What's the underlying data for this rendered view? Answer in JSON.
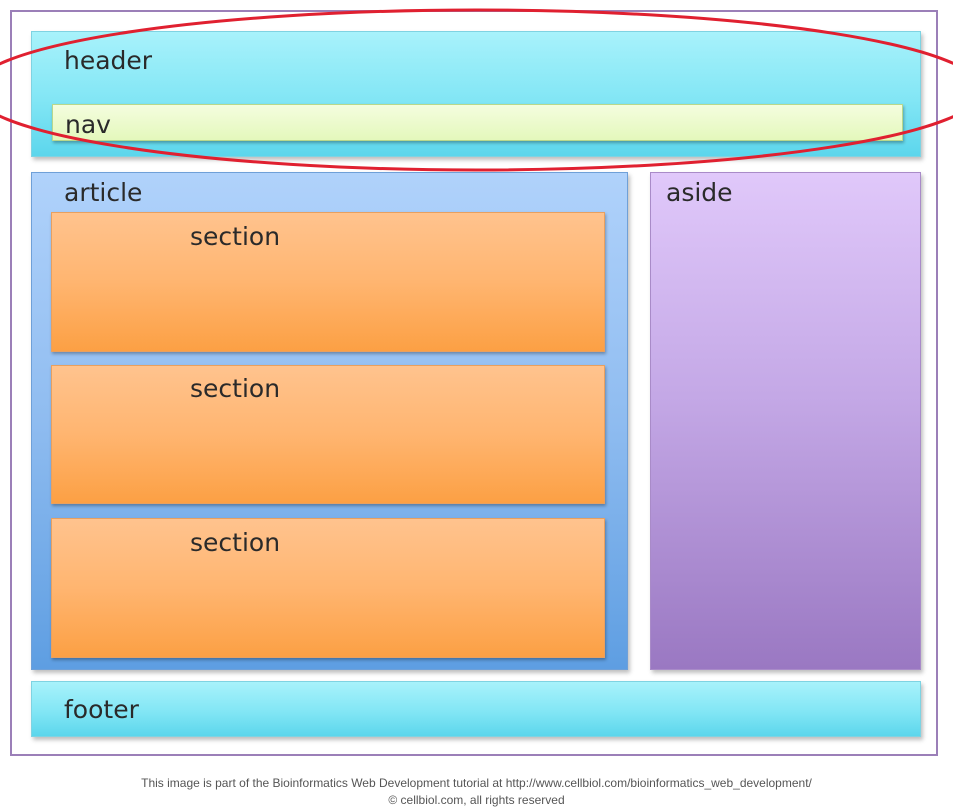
{
  "diagram": {
    "header_label": "header",
    "nav_label": "nav",
    "article_label": "article",
    "sections": [
      {
        "label": "section"
      },
      {
        "label": "section"
      },
      {
        "label": "section"
      }
    ],
    "aside_label": "aside",
    "footer_label": "footer"
  },
  "credits": {
    "line1": "This image is part of the Bioinformatics Web Development tutorial at  http://www.cellbiol.com/bioinformatics_web_development/",
    "line2": "© cellbiol.com, all rights reserved"
  },
  "colors": {
    "frame": "#9b7fb8",
    "header": "#82e6f5",
    "nav": "#e4f8bc",
    "article": "#8fbcf0",
    "aside": "#c4a8e6",
    "section": "#ffb570",
    "footer": "#82e6f5",
    "highlight": "#e02030"
  }
}
